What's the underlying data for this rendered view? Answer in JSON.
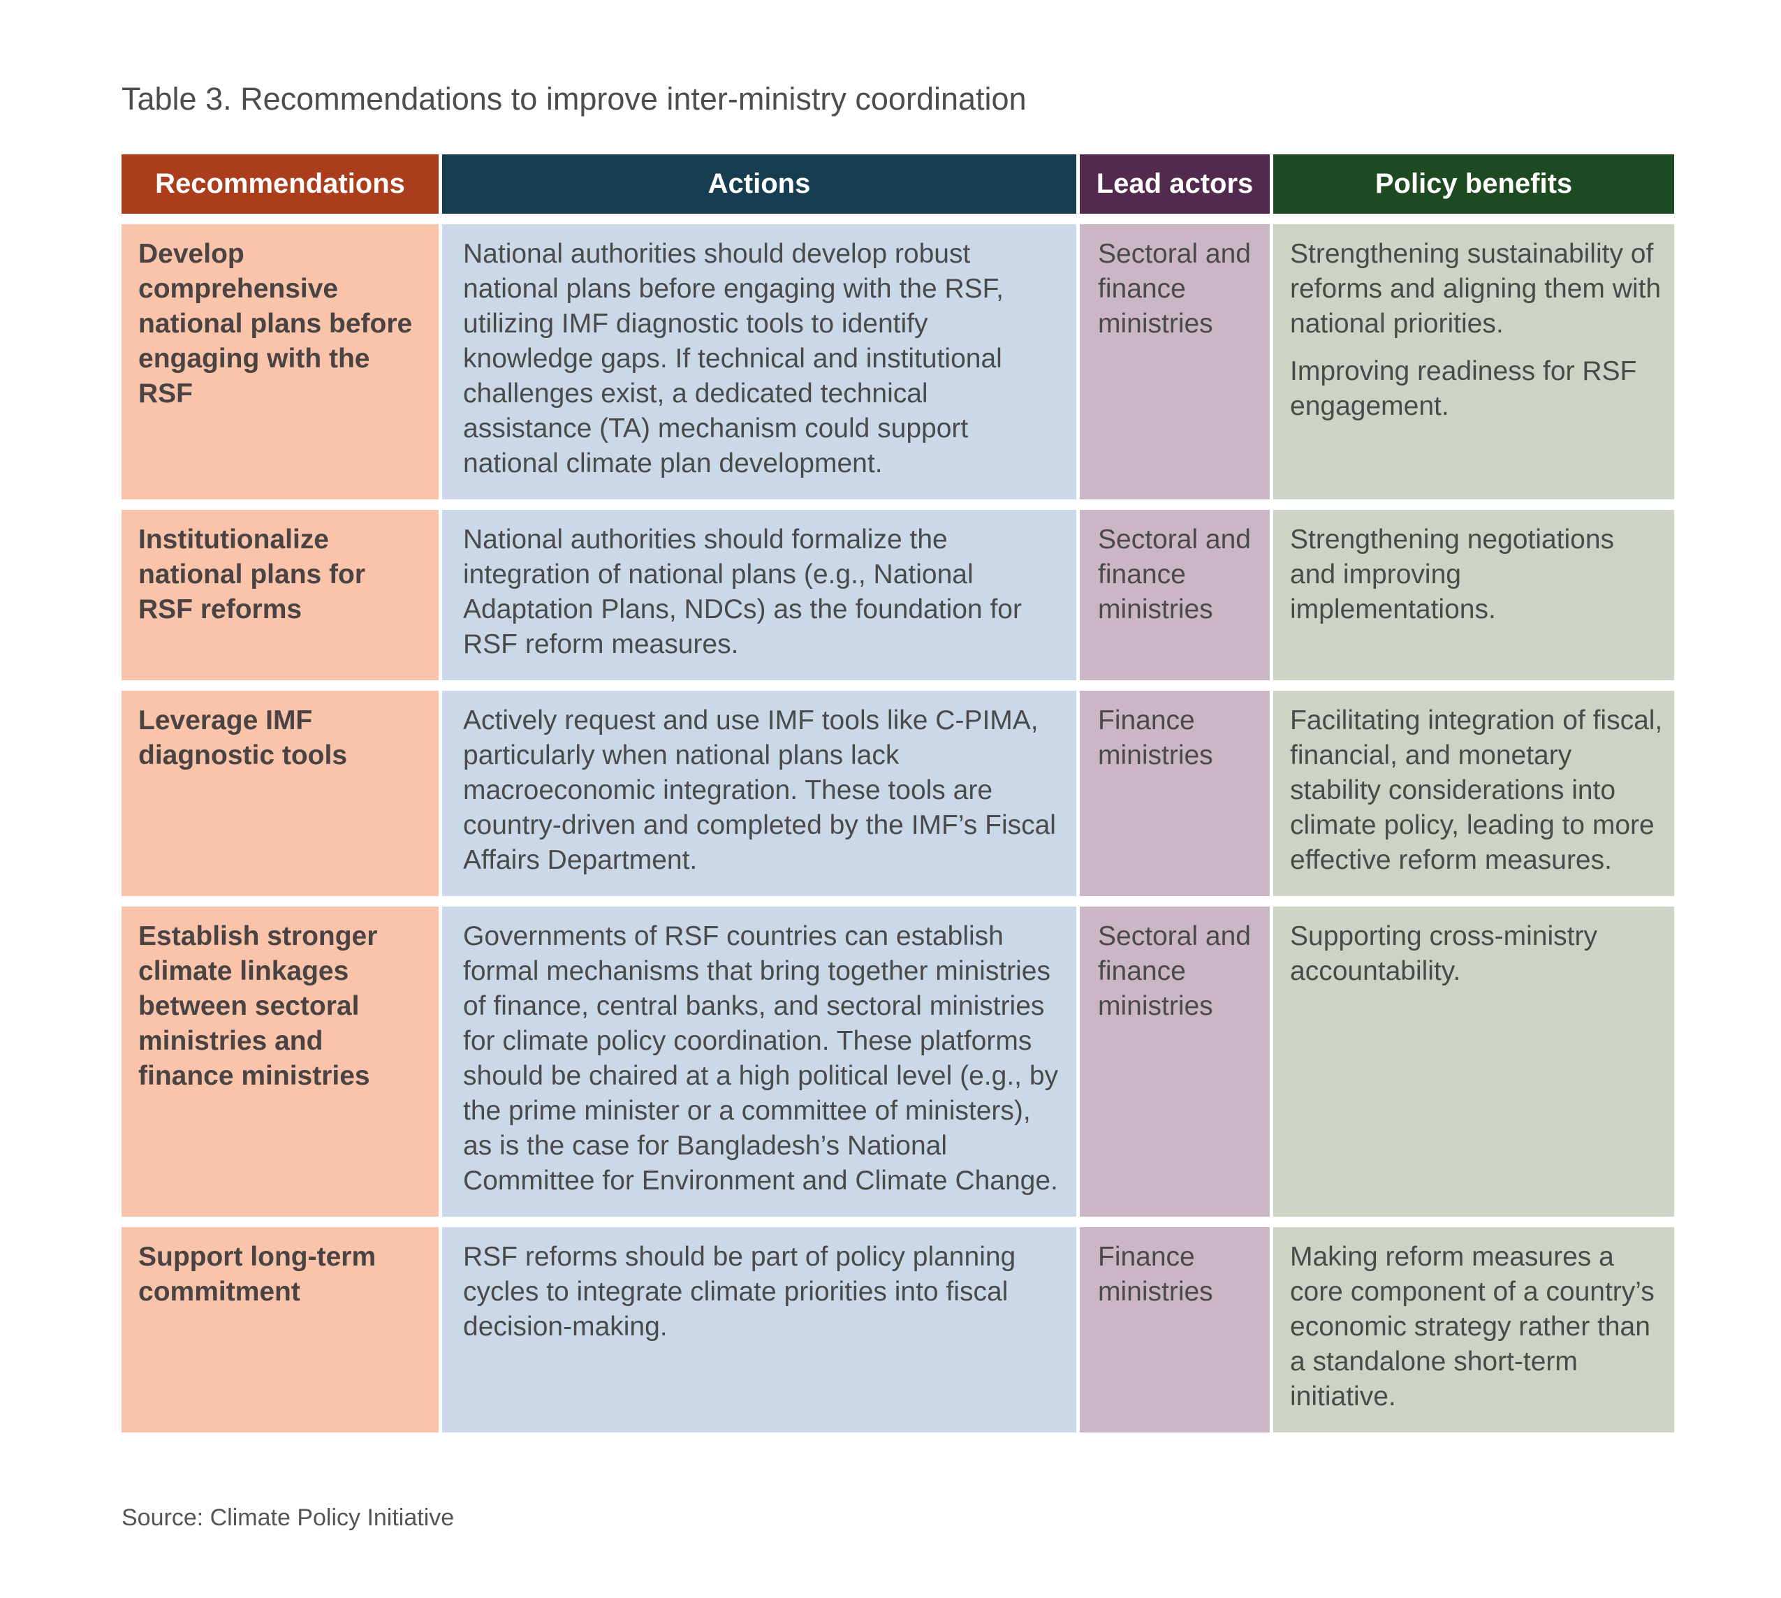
{
  "title": "Table 3. Recommendations to improve inter-ministry coordination",
  "headers": {
    "recommendations": "Recommendations",
    "actions": "Actions",
    "lead_actors": "Lead actors",
    "policy_benefits": "Policy benefits"
  },
  "header_colors": {
    "recommendations": "#a93d1c",
    "actions": "#173d50",
    "lead_actors": "#512a4d",
    "policy_benefits": "#1e4a22"
  },
  "cell_colors": {
    "recommendations": "#f9c4aa",
    "actions": "#cbd8e7",
    "lead_actors": "#cbb6c6",
    "policy_benefits": "#ccd4c7"
  },
  "rows": [
    {
      "recommendation": "Develop comprehensive national plans before engaging with the RSF",
      "action": "National authorities should develop robust national plans before engaging with the RSF, utilizing IMF diagnostic tools to identify knowledge gaps. If technical and institutional challenges exist, a dedicated technical assistance (TA) mechanism could support national climate plan development.",
      "lead_actor": "Sectoral and finance ministries",
      "benefits": [
        "Strengthening sustainability of reforms and aligning them with national priorities.",
        "Improving readiness for RSF engagement."
      ]
    },
    {
      "recommendation": "Institutionalize national plans for RSF reforms",
      "action": "National authorities should formalize the integration of national plans (e.g., National Adaptation Plans, NDCs) as the foundation for RSF reform measures.",
      "lead_actor": "Sectoral and finance ministries",
      "benefits": [
        "Strengthening negotiations and improving implementations."
      ]
    },
    {
      "recommendation": "Leverage IMF diagnostic tools",
      "action": "Actively request and use IMF tools like C-PIMA, particularly when national plans lack macroeconomic integration. These tools are country-driven and completed by the IMF’s Fiscal Affairs Department.",
      "lead_actor": "Finance ministries",
      "benefits": [
        "Facilitating integration of fiscal, financial, and monetary stability considerations into climate policy, leading to more effective reform measures."
      ]
    },
    {
      "recommendation": "Establish stronger climate linkages between sectoral ministries and finance ministries",
      "action": "Governments of RSF countries can establish formal mechanisms that bring together ministries of finance, central banks, and sectoral ministries for climate policy coordination. These platforms should be chaired at a high political level (e.g., by the prime minister or a committee of ministers), as is the case for Bangladesh’s National Committee for Environment and Climate Change.",
      "lead_actor": "Sectoral and finance ministries",
      "benefits": [
        "Supporting cross-ministry accountability."
      ]
    },
    {
      "recommendation": "Support long-term commitment",
      "action": "RSF reforms should be part of policy planning cycles to integrate climate priorities into fiscal decision-making.",
      "lead_actor": "Finance ministries",
      "benefits": [
        "Making reform measures a core component of a country’s economic strategy rather than a standalone short-term initiative."
      ]
    }
  ],
  "source": "Source: Climate Policy Initiative"
}
